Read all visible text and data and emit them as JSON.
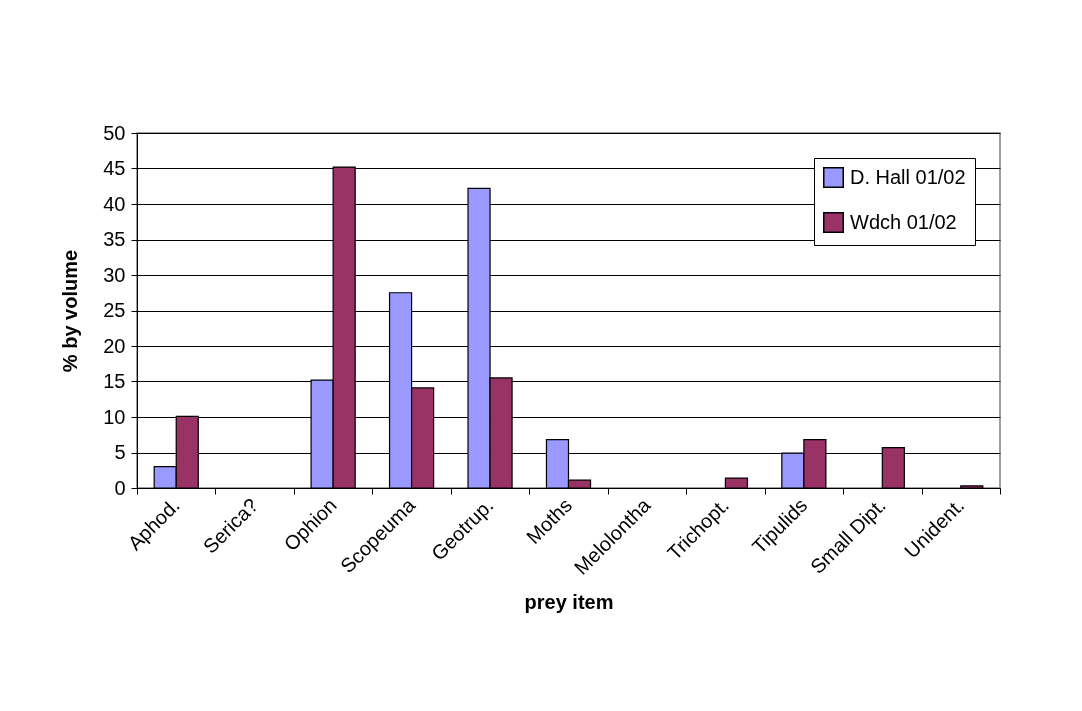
{
  "chart_data": {
    "type": "bar",
    "xlabel": "prey item",
    "ylabel": "% by volume",
    "categories": [
      "Aphod.",
      "Serica?",
      "Ophion",
      "Scopeuma",
      "Geotrup.",
      "Moths",
      "Melolontha",
      "Trichopt.",
      "Tipulids",
      "Small Dipt.",
      "Unident."
    ],
    "series": [
      {
        "name": "D. Hall 01/02",
        "color": "#9999ff",
        "values": [
          3.0,
          null,
          15.2,
          27.5,
          42.2,
          6.8,
          null,
          null,
          4.9,
          null,
          null
        ]
      },
      {
        "name": "Wdch 01/02",
        "color": "#993366",
        "values": [
          10.1,
          null,
          45.2,
          14.1,
          15.5,
          1.1,
          null,
          1.4,
          6.8,
          5.7,
          0.3
        ]
      }
    ],
    "ylim": [
      0,
      50
    ],
    "yticks": [
      0,
      5,
      10,
      15,
      20,
      25,
      30,
      35,
      40,
      45,
      50
    ],
    "grid": "y",
    "legend": "top right"
  }
}
